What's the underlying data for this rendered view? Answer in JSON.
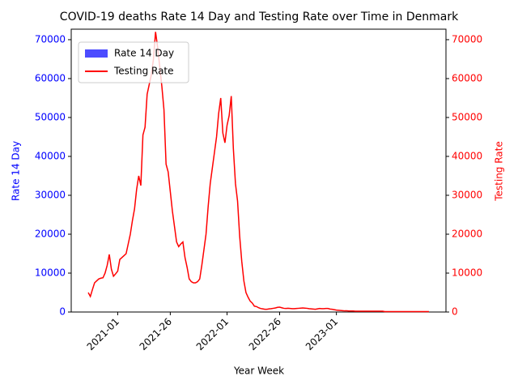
{
  "chart_data": {
    "type": "bar",
    "title": "COVID-19 deaths Rate 14 Day and Testing Rate over Time in Denmark",
    "xlabel": "Year Week",
    "ylabel": "Rate 14 Day",
    "y2label": "Testing Rate",
    "categories": [
      null,
      null,
      null,
      null,
      null,
      null,
      null,
      null,
      null,
      null,
      null,
      null,
      null,
      null,
      "2021-01",
      null,
      null,
      null,
      null,
      null,
      null,
      null,
      null,
      null,
      null,
      null,
      null,
      null,
      null,
      null,
      null,
      null,
      null,
      null,
      null,
      null,
      null,
      null,
      null,
      "2021-26",
      null,
      null,
      null,
      null,
      null,
      null,
      null,
      null,
      null,
      null,
      null,
      null,
      null,
      null,
      null,
      null,
      null,
      null,
      null,
      null,
      null,
      null,
      null,
      null,
      null,
      null,
      "2022-01",
      null,
      null,
      null,
      null,
      null,
      null,
      null,
      null,
      null,
      null,
      null,
      null,
      null,
      null,
      null,
      null,
      null,
      null,
      null,
      null,
      null,
      null,
      null,
      null,
      "2022-26",
      null,
      null,
      null,
      null,
      null,
      null,
      null,
      null,
      null,
      null,
      null,
      null,
      null,
      null,
      null,
      null,
      null,
      null,
      null,
      null,
      null,
      null,
      null,
      null,
      null,
      null,
      "2023-01",
      null,
      null,
      null,
      null,
      null,
      null,
      null,
      null,
      null,
      null,
      null,
      null,
      null,
      null,
      null,
      null,
      null,
      null,
      null,
      null,
      null,
      null,
      null,
      null,
      null,
      null,
      null,
      null,
      null,
      null,
      null,
      null,
      null,
      null,
      null,
      null,
      null,
      null,
      null,
      null,
      null,
      null,
      null,
      null
    ],
    "series": [
      {
        "name": "Rate 14 Day",
        "type": "bar",
        "color": "#0000ff",
        "values": [
          0,
          0,
          0,
          0,
          0,
          0,
          0,
          0,
          0,
          0,
          0,
          0,
          0,
          0,
          0,
          0,
          0,
          0,
          0,
          0,
          0,
          0,
          0,
          0,
          0,
          0,
          0,
          0,
          0,
          0,
          0,
          0,
          0,
          0,
          0,
          0,
          0,
          0,
          0,
          0,
          0,
          0,
          0,
          0,
          0,
          0,
          0,
          0,
          0,
          0,
          0,
          0,
          0,
          0,
          0,
          0,
          0,
          0,
          0,
          0,
          0,
          0,
          0,
          0,
          0,
          0,
          0,
          0,
          0,
          0,
          0,
          0,
          0,
          0,
          0,
          0,
          0,
          0,
          0,
          0,
          0,
          0,
          0,
          0,
          0,
          0,
          0,
          0,
          0,
          0,
          0,
          0,
          0,
          0,
          0,
          0,
          0,
          0,
          0,
          0,
          0,
          0,
          0,
          0,
          0,
          0,
          0,
          0,
          0,
          0,
          0,
          0,
          0,
          0,
          0,
          0,
          0,
          0,
          0,
          0,
          0,
          0,
          0,
          0,
          0,
          0,
          0,
          0,
          0,
          0,
          0,
          0,
          0,
          0,
          0,
          0,
          0,
          0,
          0,
          0,
          0,
          0,
          0,
          0,
          0,
          0,
          0,
          0,
          0,
          0,
          0,
          0,
          0,
          0,
          0,
          0,
          0,
          0,
          0,
          0,
          0,
          0,
          0
        ]
      },
      {
        "name": "Testing Rate",
        "type": "line",
        "color": "#ff0000",
        "axis": "y2",
        "values": [
          5000,
          4000,
          5800,
          7500,
          8000,
          8500,
          8700,
          8800,
          10000,
          12000,
          14800,
          11000,
          9200,
          9800,
          10500,
          13500,
          14000,
          14500,
          15000,
          17500,
          20000,
          23500,
          26500,
          31500,
          35000,
          32500,
          45500,
          47500,
          56000,
          58500,
          61000,
          65000,
          72000,
          68000,
          63000,
          58000,
          52000,
          38000,
          36000,
          31000,
          26000,
          22000,
          18000,
          16800,
          17500,
          18000,
          14000,
          11500,
          8500,
          7800,
          7500,
          7500,
          7800,
          8500,
          12000,
          16000,
          20000,
          27000,
          33000,
          37000,
          41000,
          45000,
          51000,
          55000,
          46000,
          43500,
          48000,
          50500,
          55500,
          42000,
          33000,
          28500,
          19500,
          13000,
          8000,
          5000,
          3800,
          2800,
          2300,
          1500,
          1400,
          1100,
          900,
          800,
          700,
          700,
          800,
          850,
          950,
          1050,
          1200,
          1250,
          1100,
          950,
          900,
          950,
          900,
          850,
          850,
          900,
          950,
          1000,
          1050,
          1000,
          950,
          850,
          800,
          750,
          700,
          800,
          900,
          850,
          850,
          900,
          900,
          750,
          700,
          600,
          500,
          450,
          400,
          350,
          300,
          300,
          250,
          250,
          250,
          200,
          200,
          200,
          200,
          200,
          200,
          200,
          200,
          200,
          200,
          200,
          200,
          200,
          200,
          100,
          100,
          100,
          100,
          100,
          100,
          100,
          100,
          100,
          100,
          100,
          100,
          100,
          100,
          100,
          100,
          100,
          100,
          100,
          100,
          100,
          100
        ]
      }
    ],
    "ylim": [
      0,
      72700
    ],
    "yticks": [
      0,
      10000,
      20000,
      30000,
      40000,
      50000,
      60000,
      70000
    ],
    "y2lim": [
      0,
      72700
    ],
    "y2ticks": [
      0,
      10000,
      20000,
      30000,
      40000,
      50000,
      60000,
      70000
    ],
    "ytick_color": "#0000ff",
    "y2tick_color": "#ff0000",
    "legend": "upper left"
  }
}
